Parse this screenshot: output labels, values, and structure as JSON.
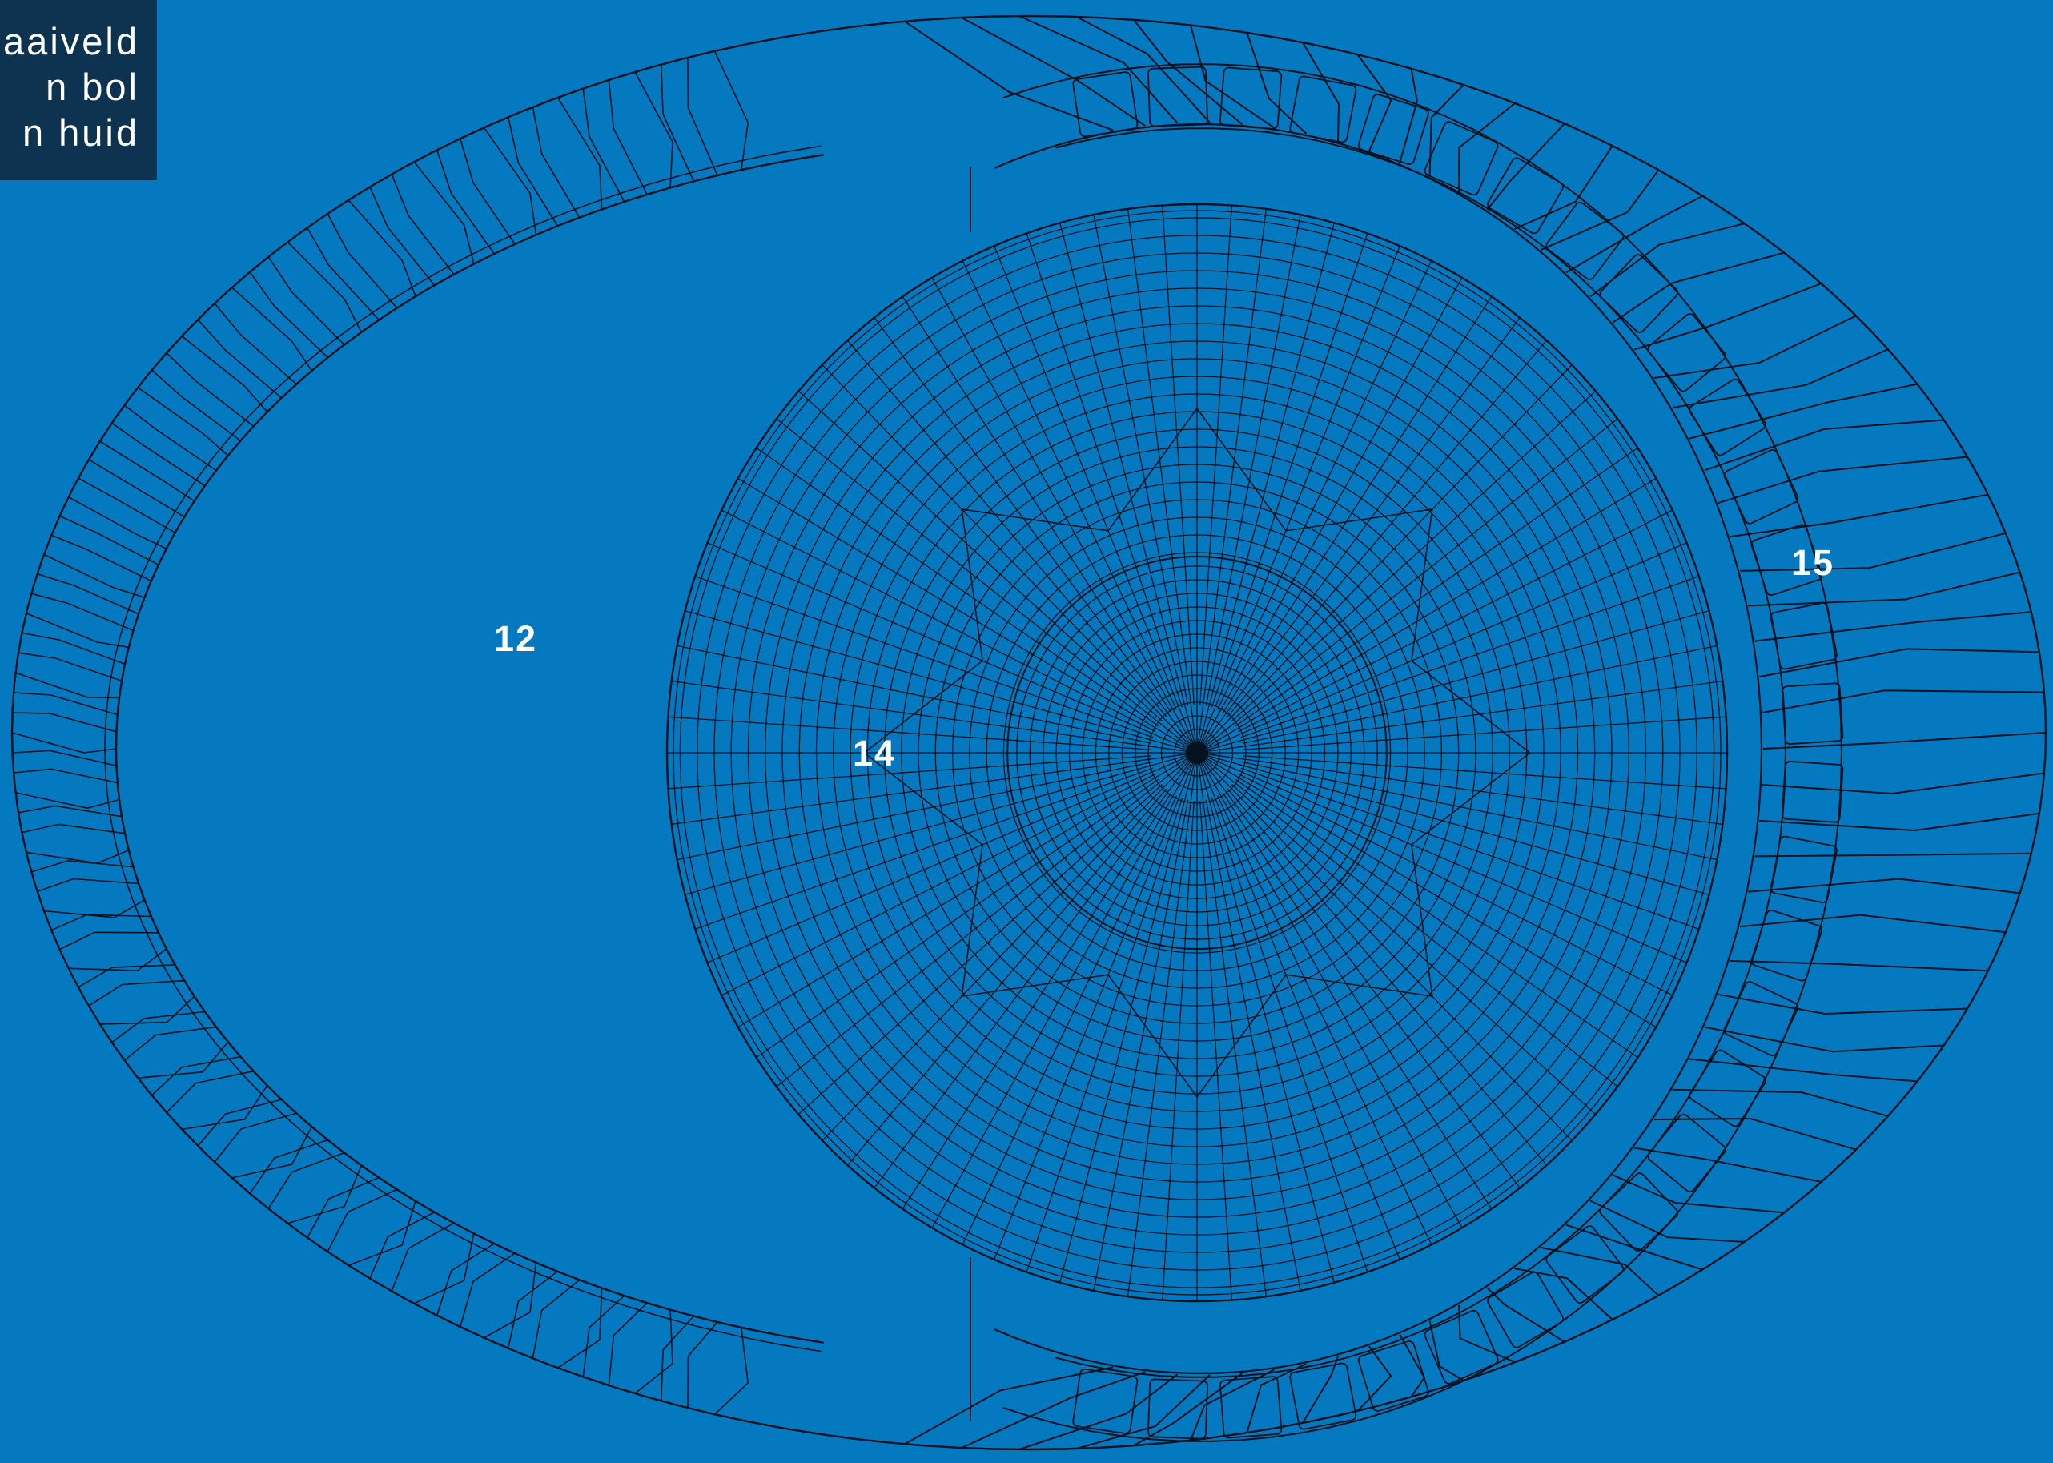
{
  "legend": {
    "lines": [
      "aaiveld",
      "n bol",
      "n huid"
    ]
  },
  "labels": {
    "zone_12": "12",
    "zone_14": "14",
    "zone_15": "15"
  },
  "colors": {
    "background": "#0479bf",
    "legend_background": "#0d3350",
    "line": "#04121f",
    "text": "#ffffff"
  }
}
